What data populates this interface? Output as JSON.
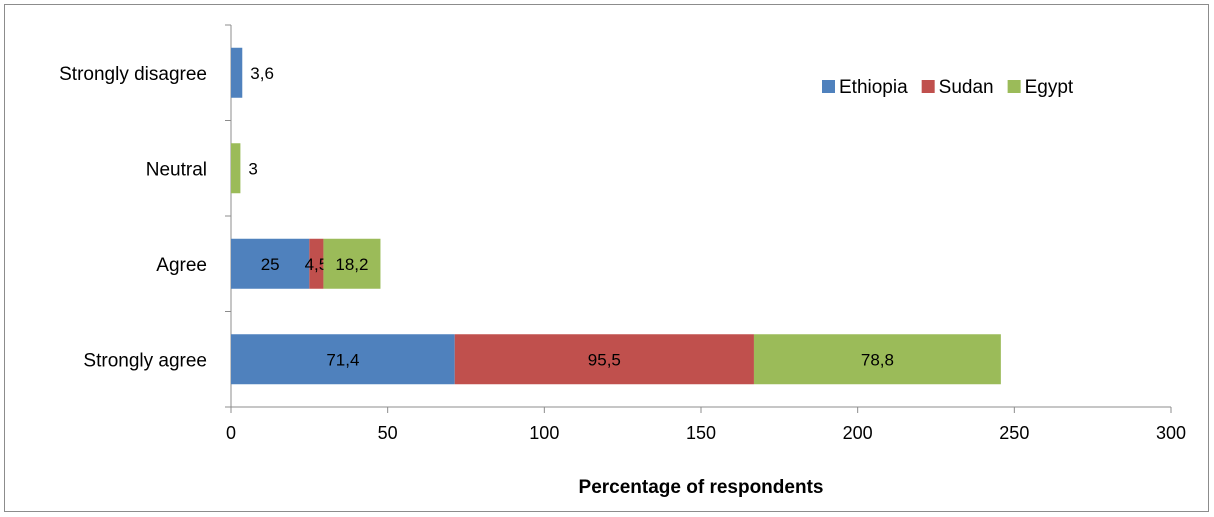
{
  "chart_data": {
    "type": "bar",
    "orientation": "horizontal",
    "stacked": true,
    "categories": [
      "Strongly agree",
      "Agree",
      "Neutral",
      "Strongly disagree"
    ],
    "series": [
      {
        "name": "Ethiopia",
        "color": "#4f81bd",
        "values": [
          71.4,
          25,
          null,
          3.6
        ],
        "labels": [
          "71,4",
          "25",
          "",
          "3,6"
        ]
      },
      {
        "name": "Sudan",
        "color": "#c0504d",
        "values": [
          95.5,
          4.5,
          null,
          null
        ],
        "labels": [
          "95,5",
          "4,5",
          "",
          ""
        ]
      },
      {
        "name": "Egypt",
        "color": "#9bbb59",
        "values": [
          78.8,
          18.2,
          3,
          null
        ],
        "labels": [
          "78,8",
          "18,2",
          "3",
          ""
        ]
      }
    ],
    "xlim": [
      0,
      300
    ],
    "xticks": [
      "0",
      "50",
      "100",
      "150",
      "200",
      "250",
      "300"
    ],
    "xlabel": "Percentage of respondents",
    "ylabel": "",
    "title": "",
    "grid": false,
    "legend_position": "top-right"
  }
}
